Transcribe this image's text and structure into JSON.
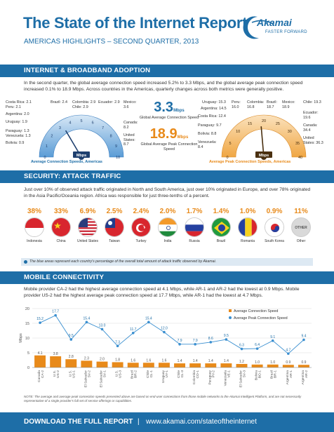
{
  "header": {
    "title": "The State of the Internet Report",
    "subtitle": "AMERICAS HIGHLIGHTS – SECOND QUARTER, 2013",
    "logo_text": "Akamai",
    "logo_tagline": "FASTER FORWARD"
  },
  "adoption": {
    "heading": "INTERNET & BROADBAND ADOPTION",
    "text": "In the second quarter, the global average connection speed increased 5.2% to 3.3 Mbps, and the global average peak connection speed increased 0.1% to 18.9 Mbps. Across countries in the Americas, quarterly changes across both metrics were generally positive.",
    "global_avg_value": "3.3",
    "global_avg_unit": "Mbps",
    "global_avg_caption": "Global Average Connection Speed",
    "global_peak_value": "18.9",
    "global_peak_unit": "Mbps",
    "global_peak_caption": "Global Average Peak Connection Speed",
    "avg_gauge": {
      "caption": "Average Connection Speeds, Americas",
      "unit_label": "Mbps",
      "ticks": [
        "0",
        "1",
        "2",
        "3",
        "4",
        "5",
        "6",
        "7",
        "8",
        "9",
        "10"
      ],
      "labels": {
        "costa_rica": "Costa Rica: 2.1",
        "peru": "Peru: 2.1",
        "argentina": "Argentina: 2.0",
        "uruguay": "Uruguay: 1.9",
        "paraguay": "Paraguay: 1.3",
        "venezuela": "Venezuela: 1.3",
        "bolivia": "Bolivia: 0.9",
        "brazil": "Brazil: 2.4",
        "colombia": "Colombia: 2.9",
        "chile": "Chile: 2.9",
        "ecuador": "Ecuador: 2.9",
        "mexico": "Mexico: 3.6",
        "canada": "Canada: 8.2",
        "united_states": "United States: 8.7"
      }
    },
    "peak_gauge": {
      "caption": "Average Peak Connection Speeds, Americas",
      "unit_label": "Mbps",
      "ticks": [
        "0",
        "5",
        "10",
        "15",
        "20",
        "25",
        "30",
        "35",
        "40"
      ],
      "labels": {
        "uruguay": "Uruguay: 15.3",
        "argentina": "Argentina: 14.5",
        "costa_rica": "Costa Rica: 12.4",
        "paraguay": "Paraguay: 9.7",
        "bolivia": "Bolivia: 8.8",
        "venezuela": "Venezuela: 8.4",
        "peru": "Peru: 16.0",
        "colombia": "Colombia: 16.8",
        "brazil": "Brazil: 18.7",
        "mexico": "Mexico: 18.9",
        "chile": "Chile: 19.3",
        "ecuador": "Ecuador: 19.6",
        "canada": "Canada: 34.4",
        "united_states": "United States: 36.3"
      }
    }
  },
  "attack": {
    "heading": "SECURITY: ATTACK TRAFFIC",
    "text": "Just over 10% of observed attack traffic originated in North and South America, just over 10% originated in Europe, and over 78% originated in the Asia Pacific/Oceania region. Africa was responsible for just three-tenths of a percent.",
    "countries": [
      {
        "pct": "38%",
        "name": "Indonesia"
      },
      {
        "pct": "33%",
        "name": "China"
      },
      {
        "pct": "6.9%",
        "name": "United States"
      },
      {
        "pct": "2.5%",
        "name": "Taiwan"
      },
      {
        "pct": "2.4%",
        "name": "Turkey"
      },
      {
        "pct": "2.0%",
        "name": "India"
      },
      {
        "pct": "1.7%",
        "name": "Russia"
      },
      {
        "pct": "1.4%",
        "name": "Brazil"
      },
      {
        "pct": "1.0%",
        "name": "Romania"
      },
      {
        "pct": "0.9%",
        "name": "South Korea"
      },
      {
        "pct": "11%",
        "name": "Other"
      }
    ],
    "other_flag_label": "OTHER",
    "note": "The blue areas represent each country's percentage of the overall total amount of attack traffic observed by Akamai."
  },
  "mobile": {
    "heading": "MOBILE CONNECTIVITY",
    "text": "Mobile provider CA-2 had the highest average connection speed at 4.1 Mbps, while AR-1 and AR-2 had the lowest at 0.9 Mbps. Mobile provider US-2 had the highest average peak connection speed at 17.7 Mbps, while AR-1 had the lowest at 4.7 Mbps."
  },
  "chart_data": {
    "type": "bar",
    "categories": [
      "Canada CA-2",
      "U.S. US-2",
      "U.S. US-1",
      "El Salvador SV-2",
      "El Salvador SV-1",
      "U.S. US-3",
      "Brazil BR-2",
      "Chile CL-1",
      "Uruguay UY-1",
      "Chile CL-3",
      "Colombia CO-1",
      "Paraguay PY-2",
      "Venezuela VE-1",
      "El Salvador SV-3",
      "Bolivia BO-1",
      "Brazil BR-1",
      "Argentina AR-1",
      "Argentina AR-2"
    ],
    "series": [
      {
        "name": "Average Connection Speed",
        "type": "bar",
        "values": [
          4.1,
          3.8,
          2.8,
          2.3,
          2.0,
          1.8,
          1.6,
          1.6,
          1.6,
          1.4,
          1.4,
          1.4,
          1.4,
          1.2,
          1.0,
          1.0,
          0.9,
          0.9
        ]
      },
      {
        "name": "Average Peak Connection Speed",
        "type": "line",
        "values": [
          15.2,
          17.7,
          9.5,
          15.4,
          13.0,
          7.3,
          11.7,
          15.4,
          12.0,
          7.9,
          7.9,
          8.6,
          9.5,
          6.3,
          6.4,
          9.1,
          4.7,
          9.4
        ]
      }
    ],
    "ylabel": "Mbps",
    "ylim": [
      0,
      20
    ],
    "yticks": [
      "0",
      "5",
      "10",
      "15",
      "20"
    ],
    "grid": true,
    "legend_position": "top-right",
    "colors": {
      "bar": "#e88a1a",
      "line": "#3a8fd0"
    }
  },
  "footnote": "NOTE: The average and average peak connection speeds presented above are based on end-user connections from those mobile networks to the Akamai Intelligent Platform, and are not necessarily representative of a single provider's full set of service offerings or capabilities.",
  "footer": {
    "cta": "DOWNLOAD THE FULL REPORT",
    "separator": "|",
    "url": "www.akamai.com/stateoftheinternet"
  },
  "colors": {
    "brand_blue": "#1e6ea7",
    "accent_orange": "#e88a1a",
    "light_blue": "#dde9f3"
  }
}
